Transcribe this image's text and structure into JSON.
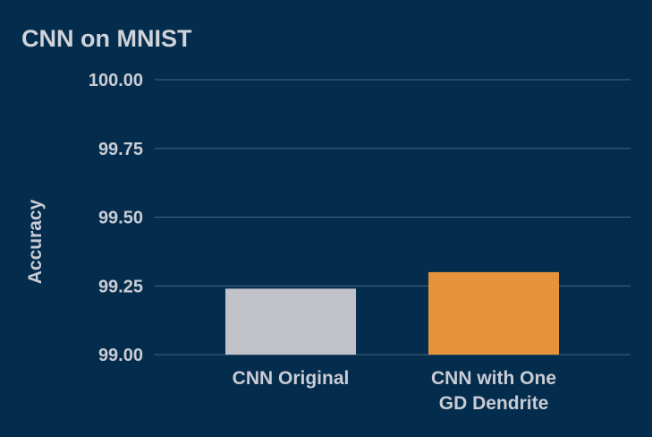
{
  "chart_data": {
    "type": "bar",
    "title": "CNN on MNIST",
    "xlabel": "",
    "ylabel": "Accuracy",
    "categories": [
      [
        "CNN Original"
      ],
      [
        "CNN with One",
        "GD Dendrite"
      ]
    ],
    "values": [
      99.24,
      99.3
    ],
    "ylim": [
      99.0,
      100.0
    ],
    "yticks": [
      99.0,
      99.25,
      99.5,
      99.75,
      100.0
    ],
    "ytick_labels": [
      "99.00",
      "99.25",
      "99.50",
      "99.75",
      "100.00"
    ],
    "grid": true,
    "legend": "none",
    "colors": [
      "#c1c1c9",
      "#e6943c"
    ]
  }
}
